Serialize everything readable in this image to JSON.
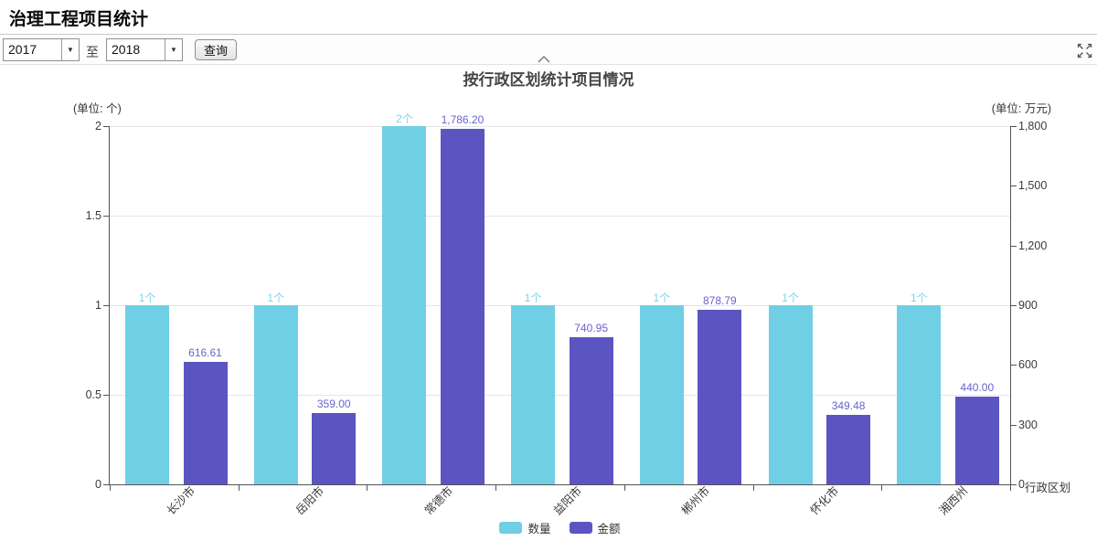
{
  "page": {
    "title": "治理工程项目统计"
  },
  "toolbar": {
    "year_from": "2017",
    "to_label": "至",
    "year_to": "2018",
    "query_button": "查询"
  },
  "chart_data": {
    "type": "bar",
    "title": "按行政区划统计项目情况",
    "left_unit": "(单位: 个)",
    "right_unit": "(单位: 万元)",
    "xaxis_name": "行政区划",
    "categories": [
      "长沙市",
      "岳阳市",
      "常德市",
      "益阳市",
      "郴州市",
      "怀化市",
      "湘西州"
    ],
    "series": [
      {
        "name": "数量",
        "axis": "left",
        "color": "#70cfe4",
        "label_color": "#7cd4e8",
        "values": [
          1,
          1,
          2,
          1,
          1,
          1,
          1
        ],
        "labels": [
          "1个",
          "1个",
          "2个",
          "1个",
          "1个",
          "1个",
          "1个"
        ]
      },
      {
        "name": "金额",
        "axis": "right",
        "color": "#5b55c2",
        "label_color": "#6a63ce",
        "values": [
          616.61,
          359.0,
          1786.2,
          740.95,
          878.79,
          349.48,
          440.0
        ],
        "labels": [
          "616.61",
          "359.00",
          "1,786.20",
          "740.95",
          "878.79",
          "349.48",
          "440.00"
        ]
      }
    ],
    "left_axis": {
      "min": 0,
      "max": 2,
      "tick_labels": [
        "2",
        "1.5",
        "1",
        "0.5",
        "0"
      ]
    },
    "right_axis": {
      "min": 0,
      "max": 1800,
      "tick_labels": [
        "1,800",
        "1,500",
        "1,200",
        "900",
        "600",
        "300",
        "0"
      ]
    },
    "legend": [
      "数量",
      "金额"
    ],
    "grid": true,
    "legend_position": "bottom"
  }
}
